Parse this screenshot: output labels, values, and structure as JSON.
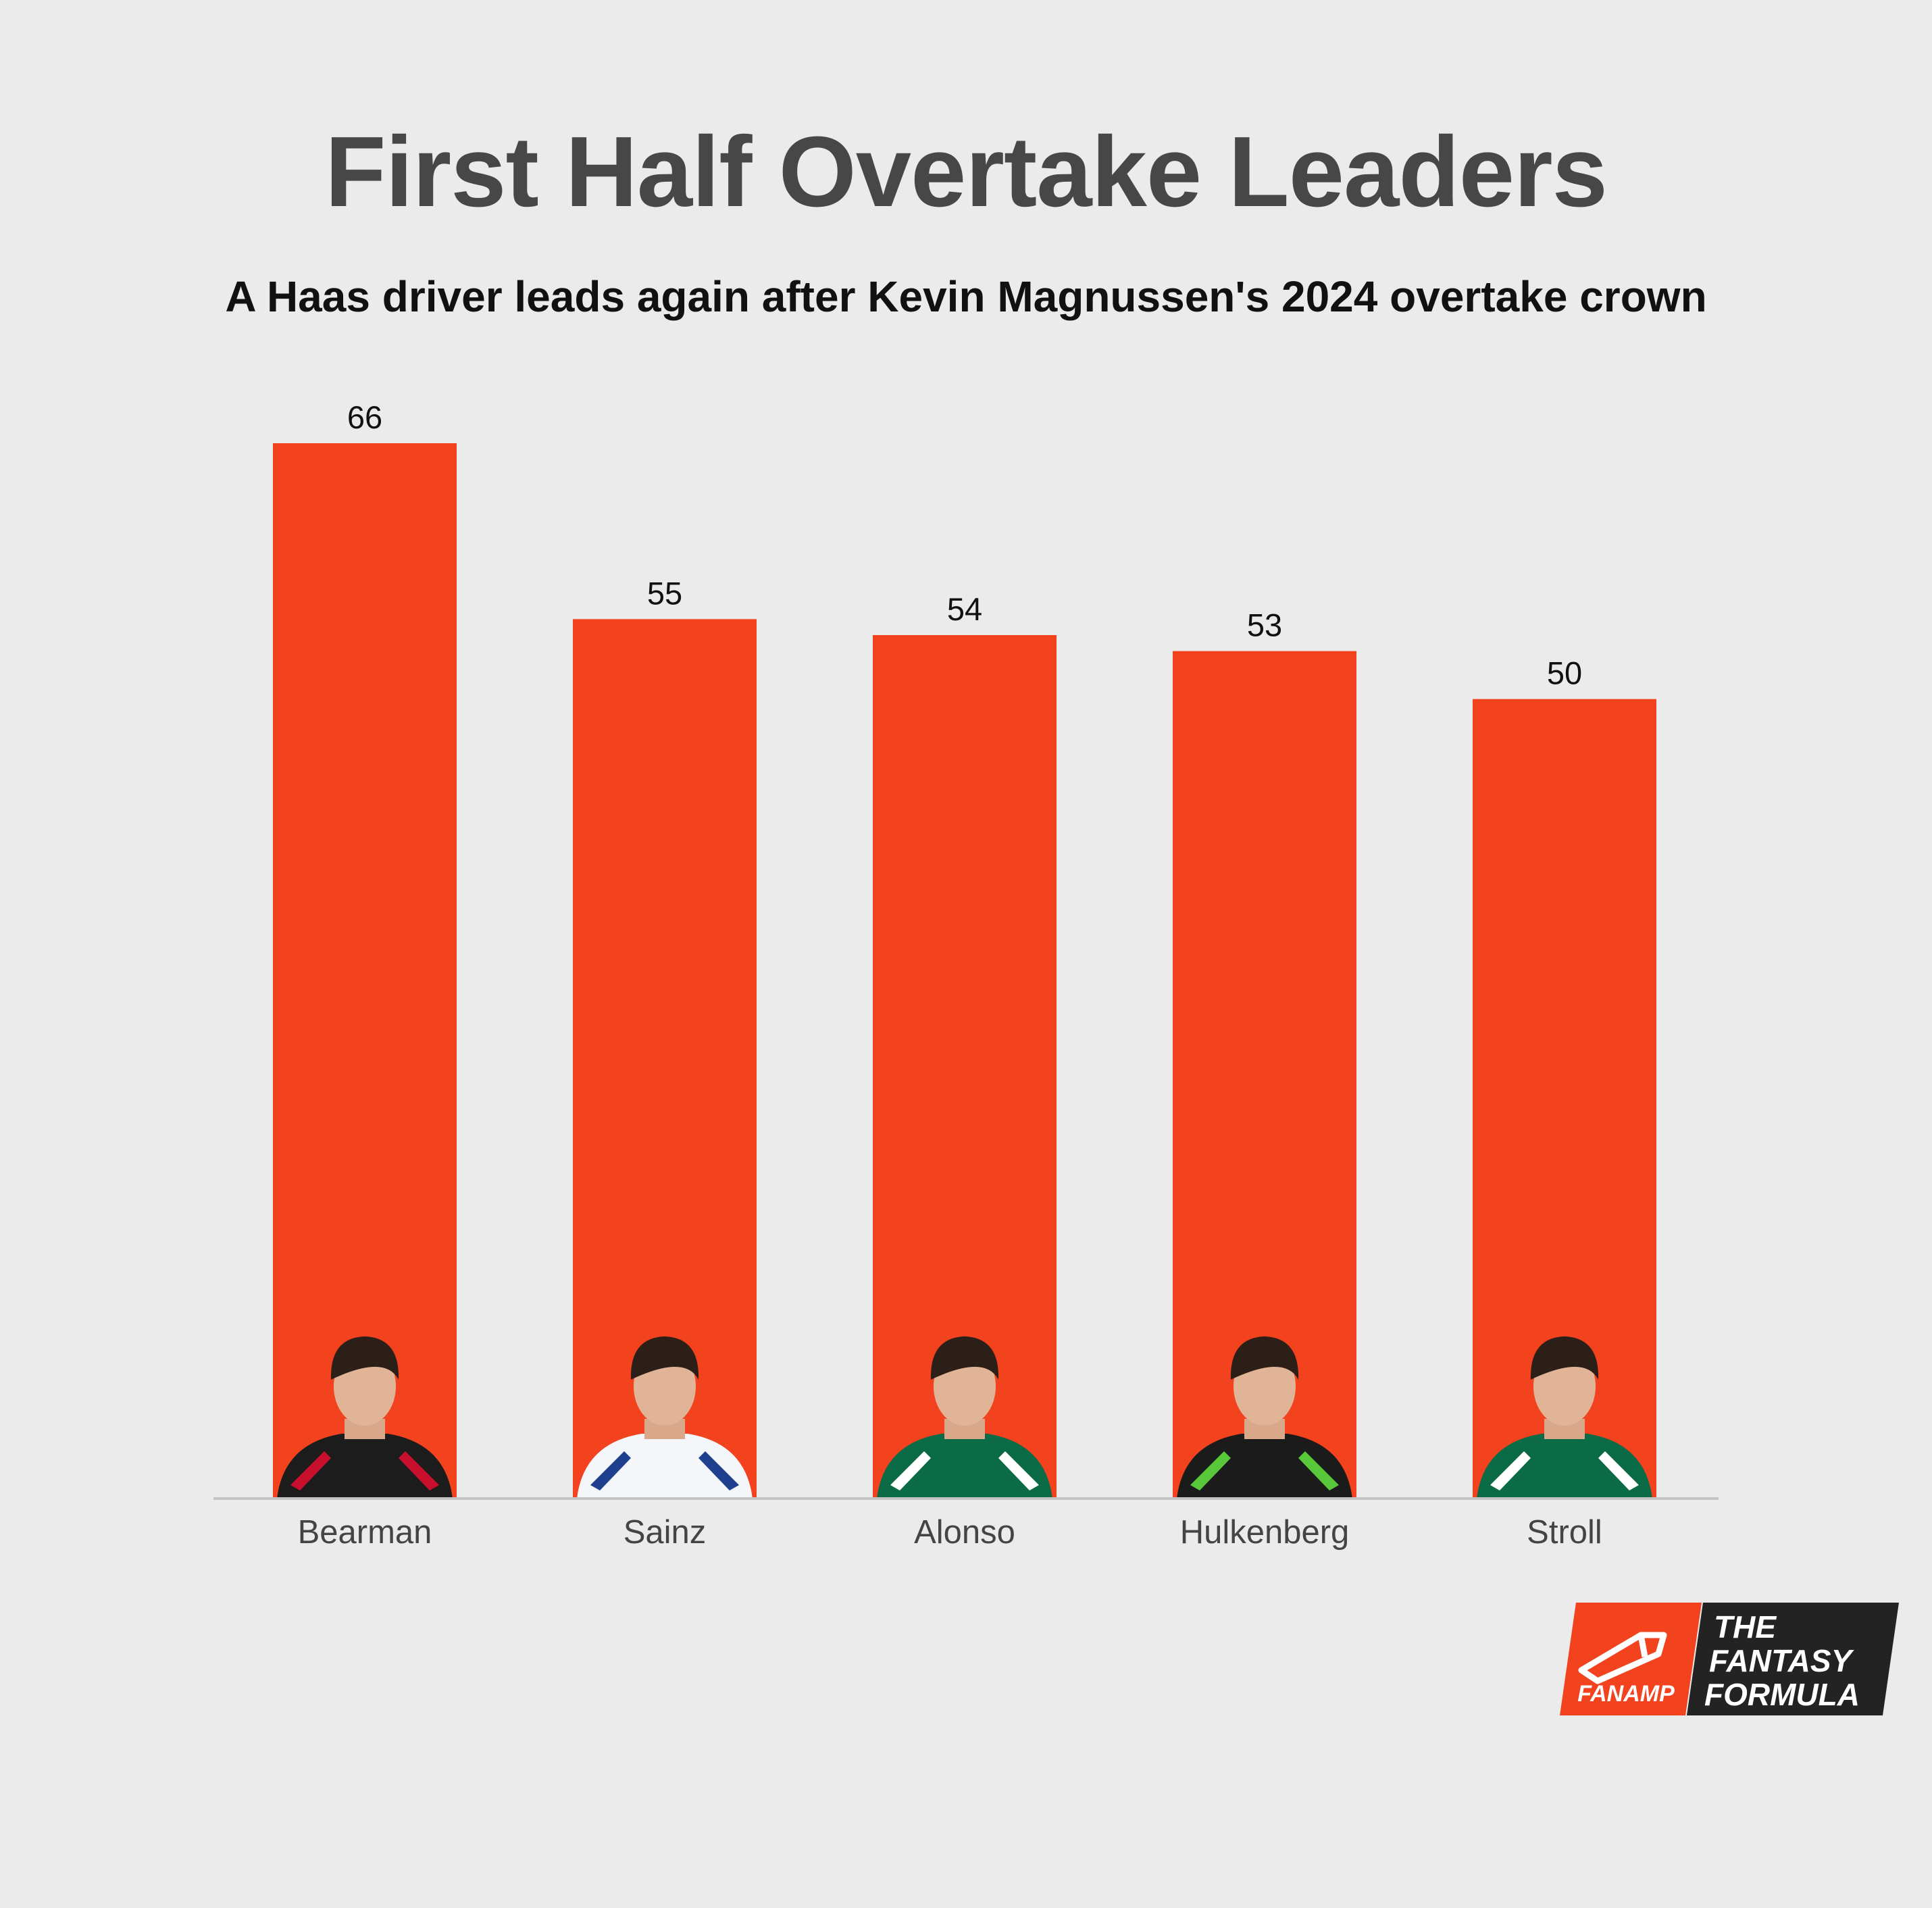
{
  "title": "First Half Overtake Leaders",
  "subtitle": "A Haas driver leads again after Kevin Magnussen's 2024 overtake crown",
  "chart_data": {
    "type": "bar",
    "title": "First Half Overtake Leaders",
    "subtitle": "A Haas driver leads again after Kevin Magnussen's 2024 overtake crown",
    "categories": [
      "Bearman",
      "Sainz",
      "Alonso",
      "Hulkenberg",
      "Stroll"
    ],
    "values": [
      66,
      55,
      54,
      53,
      50
    ],
    "ylim": [
      0,
      66
    ],
    "grid": false,
    "legend": "none",
    "bar_color": "#f2421e",
    "driver_suit_colors": [
      "#1c1c1c",
      "#f4f6fa",
      "#0b6b47",
      "#1b1b1b",
      "#0b6b47"
    ],
    "driver_suit_accents": [
      "#c8102e",
      "#1f3f8f",
      "#ffffff",
      "#58c83a",
      "#ffffff"
    ]
  },
  "logo": {
    "left_text": "FANAMP",
    "right_lines": [
      "THE",
      "FANTASY",
      "FORMULA"
    ],
    "left_color": "#f2421e",
    "right_color": "#232323"
  }
}
